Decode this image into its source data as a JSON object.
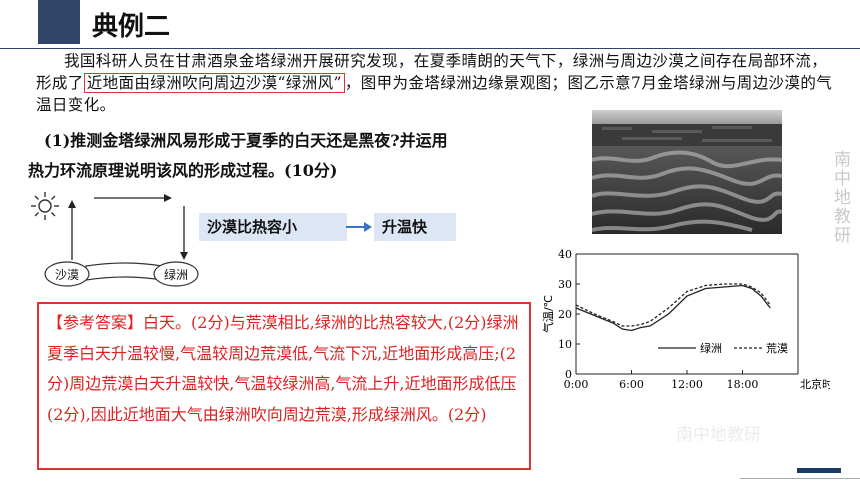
{
  "header": {
    "title": "典例二"
  },
  "intro": {
    "line_before": "我国科研人员在甘肃酒泉金塔绿洲开展研究发现，在夏季晴朗的天气下，绿洲与周边沙漠之间存在局部环流，形成了",
    "highlight": "近地面由绿洲吹向周边沙漠“绿洲风”",
    "line_after": "，图甲为金塔绿洲边缘景观图；图乙示意7月金塔绿洲与周边沙漠的气温日变化。"
  },
  "question": {
    "line1": "(1)推测金塔绿洲风易形成于夏季的白天还是黑夜?并运用",
    "line2": "热力环流原理说明该风的形成过程。(10分)"
  },
  "diagram": {
    "sun_icon": "sun-icon",
    "desert_label": "沙漠",
    "oasis_label": "绿洲",
    "tag_heat": "沙漠比热容小",
    "tag_rise": "升温快"
  },
  "answer": {
    "label": "【参考答案】",
    "text": "白天。(2分)与荒漠相比,绿洲的比热容较大,(2分)绿洲夏季白天升温较慢,气温较周边荒漠低,气流下沉,近地面形成高压;(2分)周边荒漠白天升温较快,气温较绿洲高,气流上升,近地面形成低压(2分),因此近地面大气由绿洲吹向周边荒漠,形成绿洲风。(2分)"
  },
  "watermarks": {
    "vertical": "南中地教研",
    "horizontal": "南中地教研"
  },
  "colors": {
    "accent": "#2f4466",
    "answer_red": "#dd2222",
    "tag_bg": "#dde6f4"
  },
  "chart_data": {
    "type": "line",
    "ylabel": "气温/℃",
    "xlabel": "北京时间",
    "x_ticks": [
      "0:00",
      "6:00",
      "12:00",
      "18:00"
    ],
    "y_ticks": [
      0,
      10,
      20,
      30,
      40
    ],
    "ylim": [
      0,
      40
    ],
    "xlim": [
      0,
      24
    ],
    "legend_position": "bottom-right",
    "series": [
      {
        "name": "绿洲",
        "style": "solid",
        "x": [
          0,
          2,
          4,
          5,
          6,
          7,
          8,
          10,
          12,
          14,
          16,
          18,
          19,
          20,
          21
        ],
        "y": [
          22,
          19.5,
          17,
          15,
          14.5,
          15.5,
          16,
          20,
          26,
          28.5,
          29,
          29.5,
          28.5,
          26,
          22
        ]
      },
      {
        "name": "荒漠",
        "style": "dashed",
        "x": [
          0,
          2,
          4,
          5,
          6,
          7,
          8,
          10,
          12,
          14,
          16,
          18,
          19,
          20,
          21
        ],
        "y": [
          23,
          20,
          17.5,
          16,
          16,
          16.5,
          17.5,
          22,
          27.5,
          29.5,
          30,
          30,
          29,
          27,
          23
        ]
      }
    ]
  }
}
